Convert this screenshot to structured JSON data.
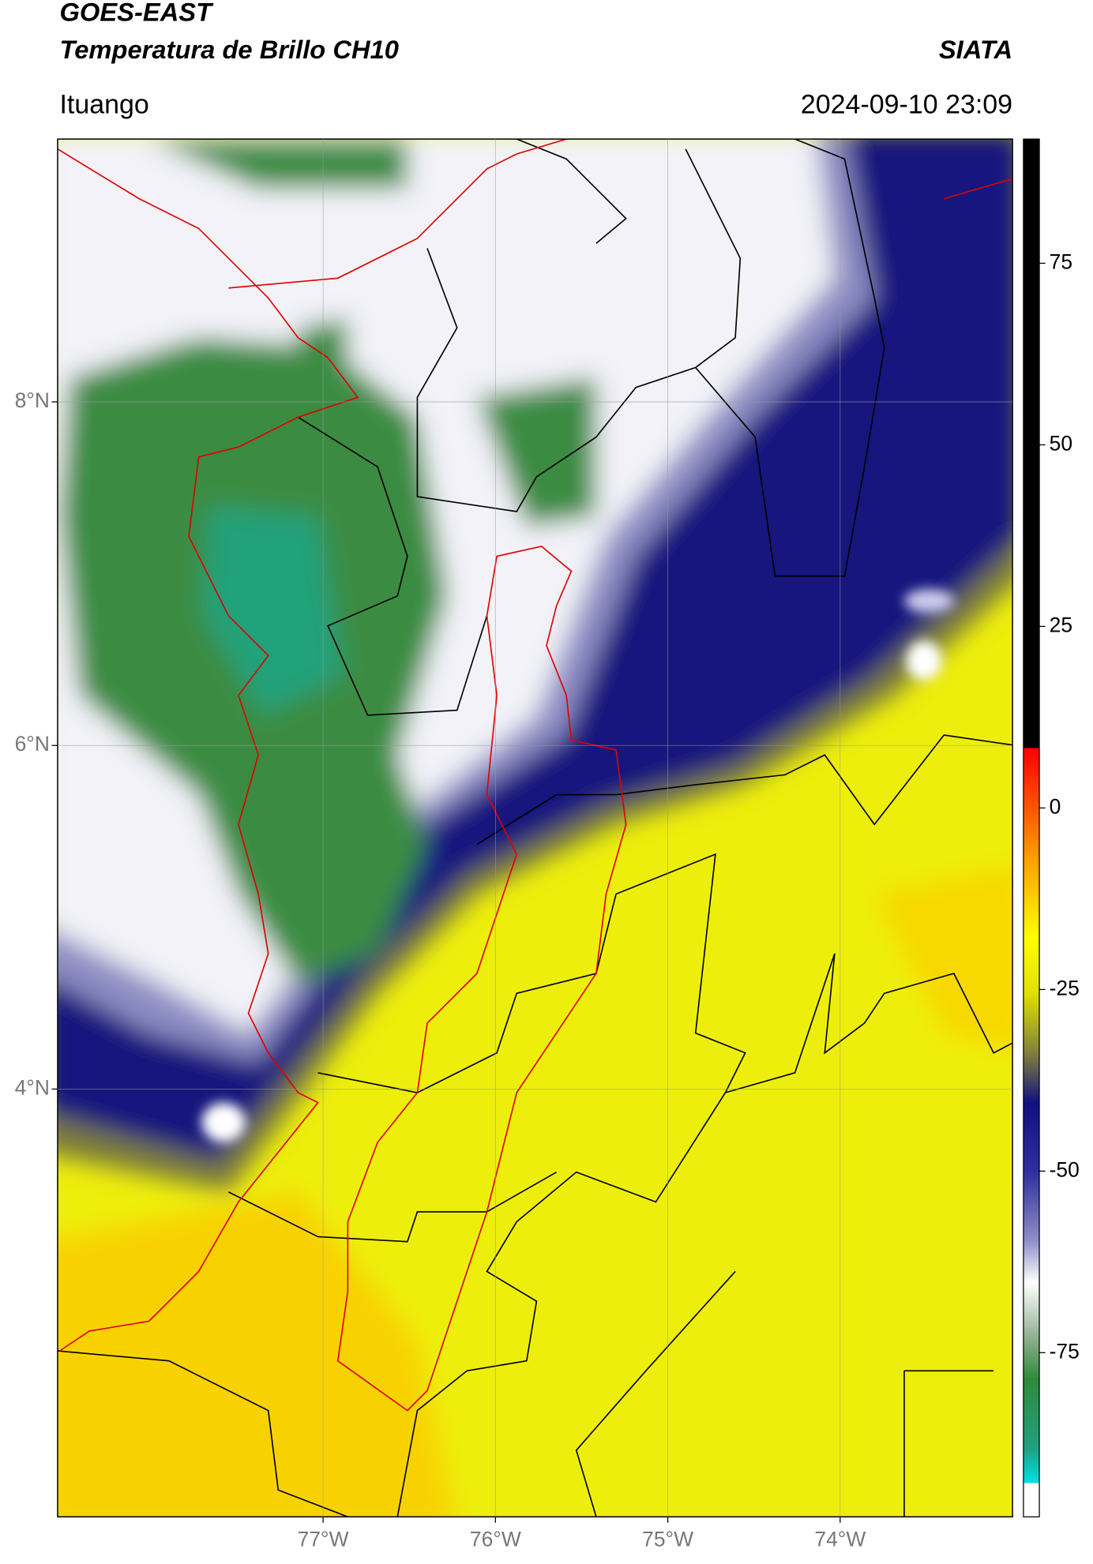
{
  "header": {
    "title": "GOES-EAST",
    "subtitle": "Temperatura de Brillo CH10",
    "agency": "SIATA",
    "location": "Ituango",
    "datetime": "2024-09-10 23:09"
  },
  "map": {
    "lat_range": [
      1.51,
      9.53
    ],
    "lon_range": [
      -78.54,
      -73.0
    ],
    "lat_ticks": [
      {
        "value": 8,
        "label": "8°N"
      },
      {
        "value": 6,
        "label": "6°N"
      },
      {
        "value": 4,
        "label": "4°N"
      }
    ],
    "lon_ticks": [
      {
        "value": -77,
        "label": "77°W"
      },
      {
        "value": -76,
        "label": "76°W"
      },
      {
        "value": -75,
        "label": "75°W"
      },
      {
        "value": -74,
        "label": "74°W"
      }
    ],
    "colorbar": {
      "range": [
        -97.6,
        92.1
      ],
      "ticks": [
        75,
        50,
        25,
        0,
        -25,
        -50,
        -75
      ]
    }
  }
}
